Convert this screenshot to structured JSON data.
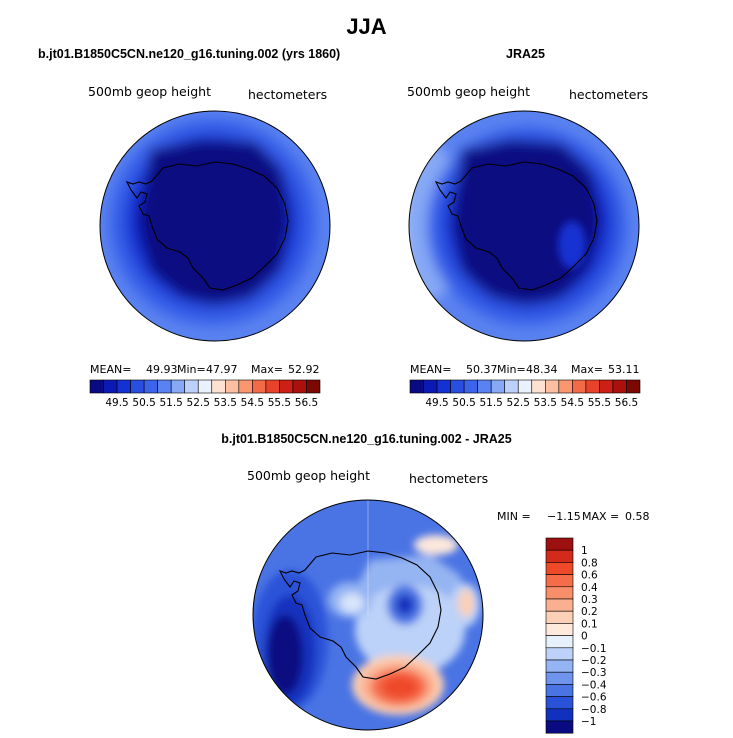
{
  "main_title": "JJA",
  "chart_data": [
    {
      "type": "heatmap",
      "title": "b.jt01.B1850C5CN.ne120_g16.tuning.002 (yrs 1860)",
      "variable_label": "500mb geop height",
      "units_label": "hectometers",
      "stats": {
        "mean_label": "MEAN=",
        "mean": "49.93",
        "min_label": "Min=",
        "min": "47.97",
        "max_label": "Max=",
        "max": "52.92"
      },
      "colorbar": {
        "orientation": "horizontal",
        "ticks": [
          "49.5",
          "50.5",
          "51.5",
          "52.5",
          "53.5",
          "54.5",
          "55.5",
          "56.5"
        ],
        "levels": [
          49,
          49.5,
          50,
          50.5,
          51,
          51.5,
          52,
          52.5,
          53,
          53.5,
          54,
          54.5,
          55,
          55.5,
          56,
          56.5
        ],
        "colors": [
          "#0a0a82",
          "#0c19b4",
          "#1432d2",
          "#2a4fe0",
          "#3b64ea",
          "#5a82f0",
          "#86a8f5",
          "#bcd0fa",
          "#ecf2fd",
          "#fde2d2",
          "#fcbfa2",
          "#fa9670",
          "#f36a48",
          "#e8432a",
          "#cc2016",
          "#aa100c",
          "#7c0804"
        ]
      },
      "projection": "south-polar-stereographic"
    },
    {
      "type": "heatmap",
      "title": "JRA25",
      "variable_label": "500mb geop height",
      "units_label": "hectometers",
      "stats": {
        "mean_label": "MEAN=",
        "mean": "50.37",
        "min_label": "Min=",
        "min": "48.34",
        "max_label": "Max=",
        "max": "53.11"
      },
      "colorbar": {
        "orientation": "horizontal",
        "ticks": [
          "49.5",
          "50.5",
          "51.5",
          "52.5",
          "53.5",
          "54.5",
          "55.5",
          "56.5"
        ],
        "levels": [
          49,
          49.5,
          50,
          50.5,
          51,
          51.5,
          52,
          52.5,
          53,
          53.5,
          54,
          54.5,
          55,
          55.5,
          56,
          56.5
        ],
        "colors": [
          "#0a0a82",
          "#0c19b4",
          "#1432d2",
          "#2a4fe0",
          "#3b64ea",
          "#5a82f0",
          "#86a8f5",
          "#bcd0fa",
          "#ecf2fd",
          "#fde2d2",
          "#fcbfa2",
          "#fa9670",
          "#f36a48",
          "#e8432a",
          "#cc2016",
          "#aa100c",
          "#7c0804"
        ]
      },
      "projection": "south-polar-stereographic"
    },
    {
      "type": "heatmap",
      "title": "b.jt01.B1850C5CN.ne120_g16.tuning.002 - JRA25",
      "variable_label": "500mb geop height",
      "units_label": "hectometers",
      "stats": {
        "min_label": "MIN =",
        "min": "−1.15",
        "max_label": "MAX =",
        "max": "0.58"
      },
      "colorbar": {
        "orientation": "vertical",
        "ticks": [
          "1",
          "0.8",
          "0.6",
          "0.4",
          "0.3",
          "0.2",
          "0.1",
          "0",
          "−0.1",
          "−0.2",
          "−0.3",
          "−0.4",
          "−0.6",
          "−0.8",
          "−1"
        ],
        "colors": [
          "#9c1010",
          "#d42a1a",
          "#ee4a2a",
          "#f56c48",
          "#f88e6a",
          "#fab090",
          "#fcd0b6",
          "#feeadc",
          "#e8f0fc",
          "#bcd2f8",
          "#94b4f2",
          "#6e94ec",
          "#4a74e4",
          "#2a52d8",
          "#1230be",
          "#0a0a82"
        ]
      },
      "projection": "south-polar-stereographic"
    }
  ]
}
